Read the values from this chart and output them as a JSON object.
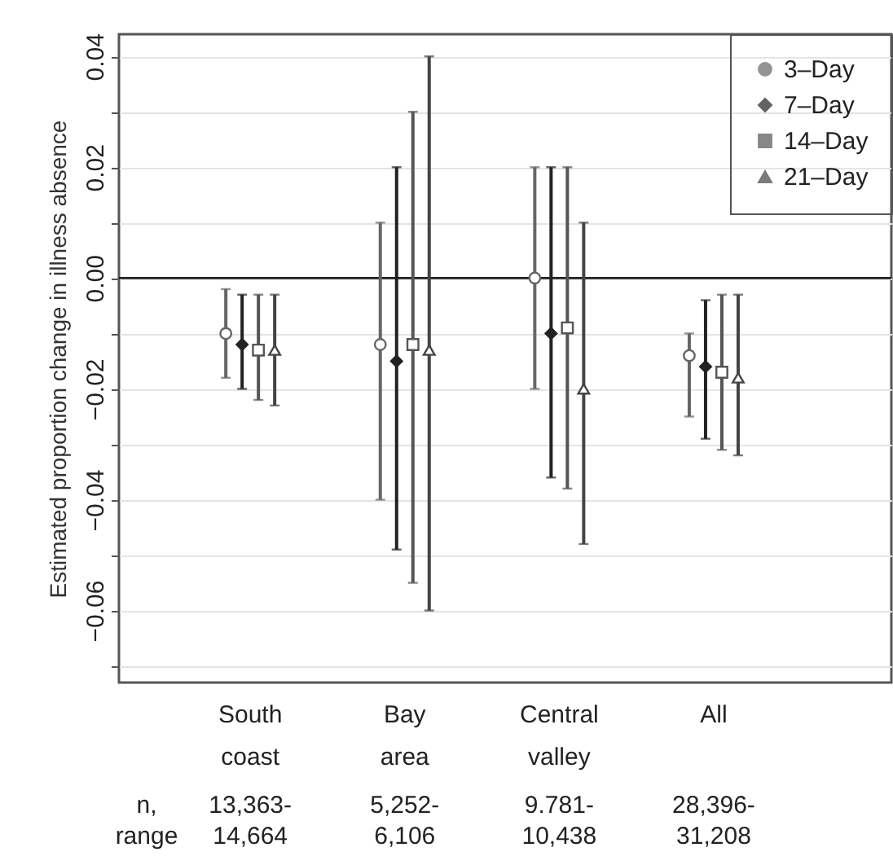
{
  "chart_data": {
    "type": "scatter",
    "ylabel": "Estimated proportion change in illness absence",
    "categories": [
      "South coast",
      "Bay area",
      "Central valley",
      "All"
    ],
    "series": [
      {
        "name": "3–Day",
        "color": "#666666",
        "marker": "circle",
        "values": [
          -0.01,
          -0.012,
          0.0,
          -0.014
        ],
        "errors": [
          [
            -0.018,
            -0.002
          ],
          [
            -0.04,
            0.01
          ],
          [
            -0.02,
            0.02
          ],
          [
            -0.025,
            -0.01
          ]
        ]
      },
      {
        "name": "7–Day",
        "color": "#222222",
        "marker": "diamond",
        "values": [
          -0.012,
          -0.015,
          -0.01,
          -0.016
        ],
        "errors": [
          [
            -0.02,
            -0.003
          ],
          [
            -0.049,
            0.02
          ],
          [
            -0.036,
            0.02
          ],
          [
            -0.029,
            -0.004
          ]
        ]
      },
      {
        "name": "14–Day",
        "color": "#555555",
        "marker": "square",
        "values": [
          -0.013,
          -0.012,
          -0.009,
          -0.017
        ],
        "errors": [
          [
            -0.022,
            -0.003
          ],
          [
            -0.055,
            0.03
          ],
          [
            -0.038,
            0.02
          ],
          [
            -0.031,
            -0.003
          ]
        ]
      },
      {
        "name": "21–Day",
        "color": "#444444",
        "marker": "triangle",
        "values": [
          -0.013,
          -0.013,
          -0.02,
          -0.018
        ],
        "errors": [
          [
            -0.023,
            -0.003
          ],
          [
            -0.06,
            0.04
          ],
          [
            -0.048,
            0.01
          ],
          [
            -0.032,
            -0.003
          ]
        ]
      }
    ],
    "ylim": [
      -0.073,
      0.044
    ],
    "yticks": [
      {
        "value": -0.07,
        "label": null
      },
      {
        "value": -0.06,
        "label": "−0.06"
      },
      {
        "value": -0.05,
        "label": null
      },
      {
        "value": -0.04,
        "label": "−0.04"
      },
      {
        "value": -0.03,
        "label": null
      },
      {
        "value": -0.02,
        "label": "−0.02"
      },
      {
        "value": -0.01,
        "label": null
      },
      {
        "value": 0,
        "label": "0.00"
      },
      {
        "value": 0.01,
        "label": null
      },
      0.02,
      {
        "value": 0.03,
        "label": null
      },
      0.04
    ],
    "grid": "y",
    "legend": "top right",
    "ref_lines": [
      {
        "axis": "y",
        "value": 0,
        "color": "#222222"
      }
    ],
    "annotations": [
      "n,\nrange",
      "13,363-\n14,664",
      "5,252-\n6,106",
      "9.781-\n10,438",
      "28,396-\n31,208"
    ]
  }
}
